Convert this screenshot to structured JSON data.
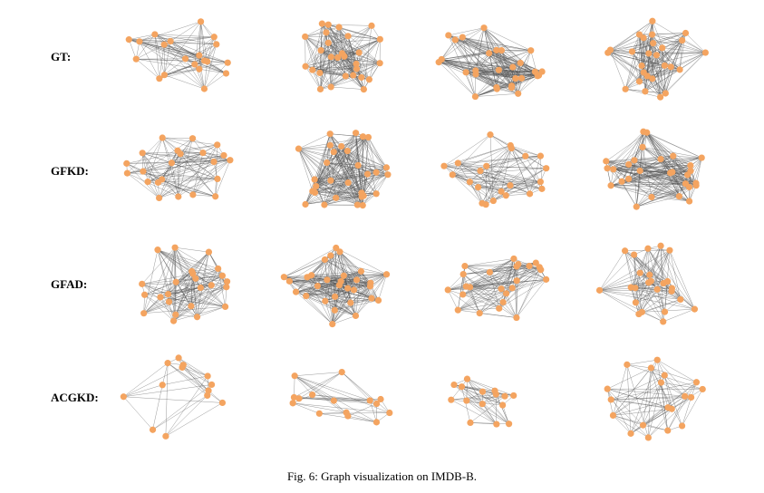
{
  "figure": {
    "rows": [
      {
        "label": "GT:"
      },
      {
        "label": "GFKD:"
      },
      {
        "label": "GFAD:"
      },
      {
        "label": "ACGKD:"
      }
    ],
    "columns": 4,
    "caption": "Fig. 6: Graph visualization on IMDB-B.",
    "colors": {
      "node": "#f4a460",
      "edge": "#555555"
    }
  }
}
